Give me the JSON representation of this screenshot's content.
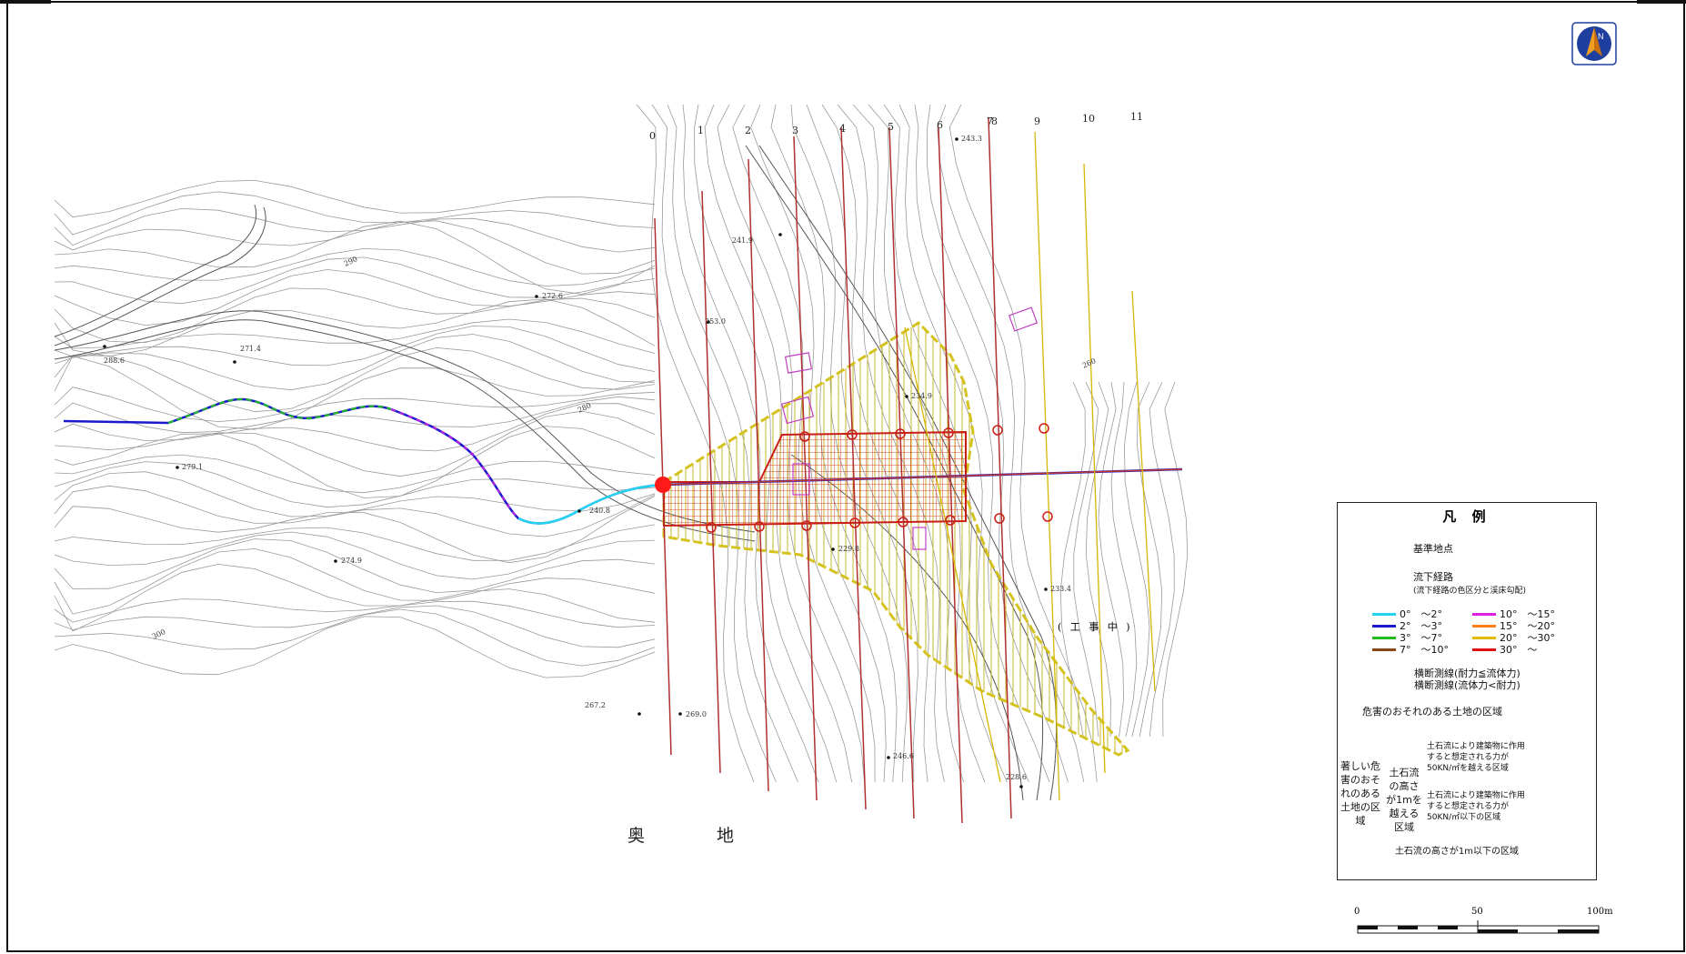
{
  "map": {
    "place_name": "奥　地",
    "construction_label": "( 工 事 中 )",
    "section_numbers": [
      "0",
      "1",
      "2",
      "3",
      "4",
      "5",
      "6",
      "7",
      "8",
      "9",
      "10",
      "11"
    ],
    "spot_elevations": [
      "243.3",
      "241.9",
      "272.6",
      "253.0",
      "288.6",
      "271.4",
      "234.9",
      "279.1",
      "240.8",
      "274.9",
      "233.4",
      "229.8",
      "267.2",
      "269.0",
      "246.6",
      "228.6"
    ],
    "contour_labels": [
      "290",
      "280",
      "300",
      "260"
    ]
  },
  "legend": {
    "title": "凡 例",
    "base_point_label": "基準地点",
    "flow_path_label": "流下経路",
    "flow_path_note": "(流下経路の色区分と渓床勾配)",
    "slope_classes": [
      {
        "label": "0°　～2°",
        "color": "#22d4f0"
      },
      {
        "label": "2°　～3°",
        "color": "#1a1acc"
      },
      {
        "label": "3°　～7°",
        "color": "#22bb22"
      },
      {
        "label": "7°　～10°",
        "color": "#8b4513"
      },
      {
        "label": "10°　～15°",
        "color": "#e020e0"
      },
      {
        "label": "15°　～20°",
        "color": "#ff7f1a"
      },
      {
        "label": "20°　～30°",
        "color": "#e6b800"
      },
      {
        "label": "30°　～",
        "color": "#e01010"
      }
    ],
    "cross_section_red": "横断測線(耐力≦流体力)",
    "cross_section_yellow": "横断測線(流体力<耐力)",
    "zone_hazard": "危害のおそれのある土地の区域",
    "zone_severe": "著しい危害のおそれのある土地の区域",
    "zone_height_over": "土石流の高さが1mを越える区域",
    "zone_force_over": "土石流により建築物に作用すると想定される力が50KN/㎡を越える区域",
    "zone_force_under": "土石流により建築物に作用すると想定される力が50KN/㎡以下の区域",
    "zone_height_under": "土石流の高さが1m以下の区域"
  },
  "scale_bar": {
    "labels": [
      "0",
      "50",
      "100m"
    ]
  },
  "colors": {
    "hazard_fill": "#fff59a",
    "hazard_border": "#c8c820",
    "red_zone": "#e02020",
    "contour": "#9a9a9a",
    "base_point": "#ff1a1a"
  },
  "icons": [
    "north-arrow-icon"
  ]
}
